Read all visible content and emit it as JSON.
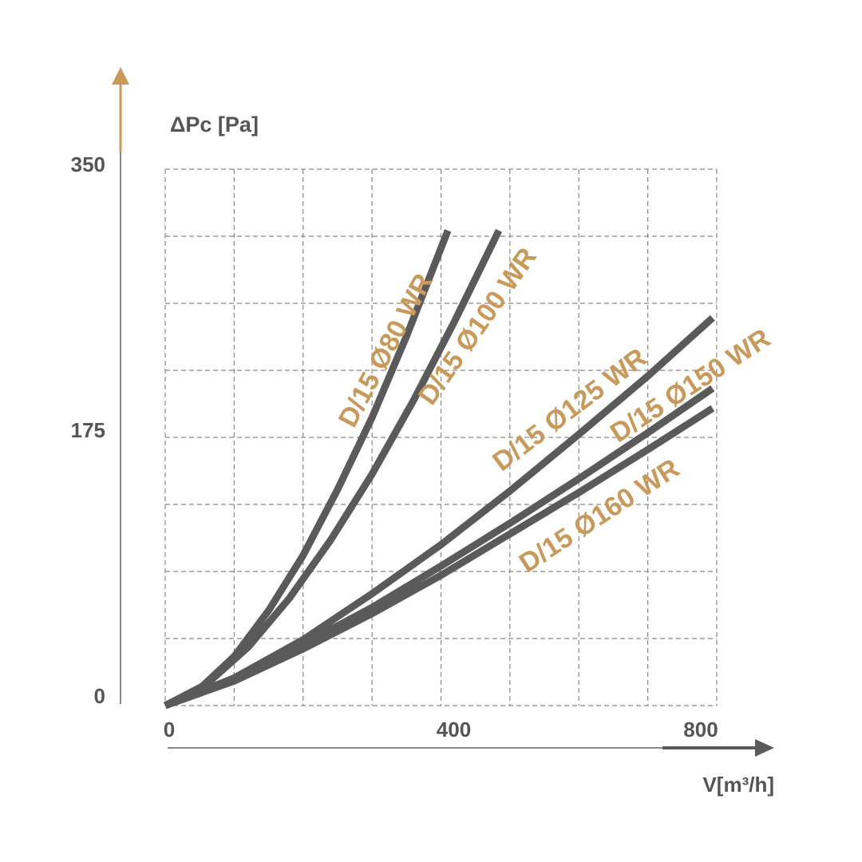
{
  "chart_data": {
    "type": "line",
    "y_label": "ΔPc [Pa]",
    "x_label": "V[m³/h]",
    "xlim": [
      0,
      800
    ],
    "xticks": [
      0,
      400,
      800
    ],
    "ylim": [
      0,
      350
    ],
    "yticks": [
      0,
      175,
      350
    ],
    "x_gridlines": [
      0,
      100,
      200,
      300,
      400,
      500,
      600,
      700,
      800
    ],
    "y_gridlines": [
      0,
      43.75,
      87.5,
      131.25,
      175,
      218.75,
      262.5,
      306.25,
      350
    ],
    "grid": true,
    "series": [
      {
        "name": "D/15 Ø80 WR",
        "color": "#5a5a5a",
        "label_color": "#c8995a",
        "x": [
          0,
          50,
          100,
          150,
          200,
          250,
          300,
          350,
          410
        ],
        "values": [
          0,
          11,
          32,
          62,
          98,
          141,
          188,
          241,
          310
        ]
      },
      {
        "name": "D/15 Ø100 WR",
        "color": "#5a5a5a",
        "label_color": "#c8995a",
        "x": [
          0,
          60,
          120,
          180,
          240,
          300,
          360,
          420,
          484
        ],
        "values": [
          0,
          14,
          38,
          70,
          108,
          151,
          199,
          251,
          310
        ]
      },
      {
        "name": "D/15 Ø125 WR",
        "color": "#5a5a5a",
        "label_color": "#c8995a",
        "x": [
          0,
          100,
          200,
          300,
          400,
          500,
          600,
          700,
          794
        ],
        "values": [
          0,
          18,
          43,
          73,
          105,
          140,
          177,
          215,
          253
        ]
      },
      {
        "name": "D/15 Ø150 WR",
        "color": "#5a5a5a",
        "label_color": "#c8995a",
        "x": [
          0,
          100,
          200,
          300,
          400,
          500,
          600,
          700,
          794
        ],
        "values": [
          0,
          17,
          40,
          64,
          91,
          119,
          148,
          178,
          207
        ]
      },
      {
        "name": "D/15 Ø160 WR",
        "color": "#5a5a5a",
        "label_color": "#c8995a",
        "x": [
          0,
          100,
          200,
          300,
          400,
          500,
          600,
          700,
          794
        ],
        "values": [
          0,
          16,
          37,
          60,
          85,
          112,
          139,
          167,
          194
        ]
      }
    ]
  }
}
